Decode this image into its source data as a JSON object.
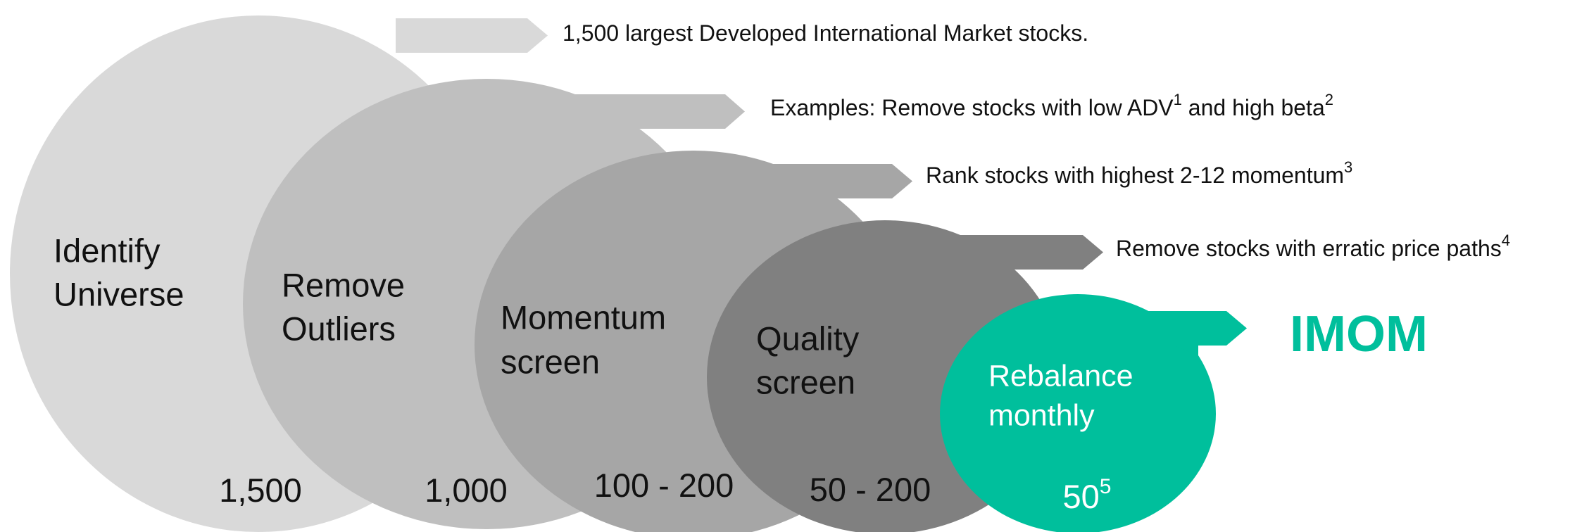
{
  "stages": [
    {
      "label": [
        "Identify",
        "Universe"
      ],
      "count": "1,500",
      "description": [
        {
          "text": "1,500 largest Developed International Market stocks."
        }
      ]
    },
    {
      "label": [
        "Remove",
        "Outliers"
      ],
      "count": "1,000",
      "description": [
        {
          "text": "Examples: Remove stocks with low ADV"
        },
        {
          "sup": "1"
        },
        {
          "text": " and high beta"
        },
        {
          "sup": "2"
        }
      ]
    },
    {
      "label": [
        "Momentum",
        "screen"
      ],
      "count": "100 - 200",
      "description": [
        {
          "text": "Rank stocks with highest 2-12 momentum"
        },
        {
          "sup": "3"
        }
      ]
    },
    {
      "label": [
        "Quality",
        "screen"
      ],
      "count": "50 - 200",
      "description": [
        {
          "text": "Remove stocks with erratic price paths"
        },
        {
          "sup": "4"
        }
      ]
    },
    {
      "label": [
        "Rebalance",
        "monthly"
      ],
      "count": "50",
      "count_footnote": "5",
      "description": [
        {
          "text": "IMOM"
        }
      ]
    }
  ]
}
